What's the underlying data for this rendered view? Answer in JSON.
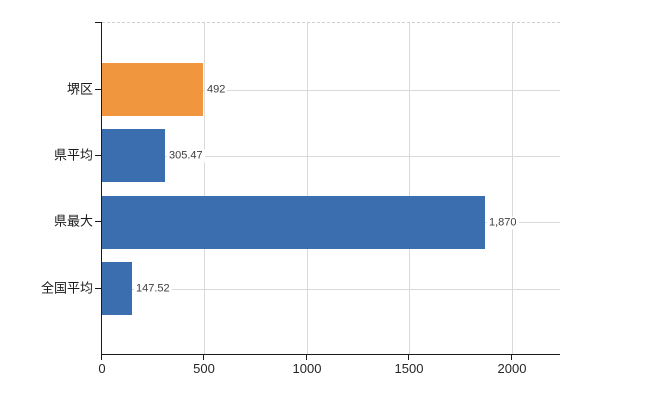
{
  "chart_data": {
    "type": "bar",
    "orientation": "horizontal",
    "categories": [
      "堺区",
      "県平均",
      "県最大",
      "全国平均"
    ],
    "values": [
      492,
      305.47,
      1870,
      147.52
    ],
    "value_labels": [
      "492",
      "305.47",
      "1,870",
      "147.52"
    ],
    "bar_colors": [
      "#f0963e",
      "#3b6eae",
      "#3b6eae",
      "#3b6eae"
    ],
    "x_ticks": [
      0,
      500,
      1000,
      1500,
      2000
    ],
    "x_tick_labels": [
      "0",
      "500",
      "1000",
      "1500",
      "2000"
    ],
    "x_axis_range": [
      0,
      2236
    ],
    "grid": true,
    "legend": false
  },
  "colors": {
    "background": "#ffffff",
    "highlight_bar": "#f0963e",
    "default_bar": "#3b6eae",
    "gridline": "#d9d9d9",
    "plot_border_top": "#cfcfcf",
    "axis": "#1a1a1a",
    "value_label": "#3d3d3d",
    "tick_label": "#262626",
    "category_label": "#1a1a1a"
  }
}
